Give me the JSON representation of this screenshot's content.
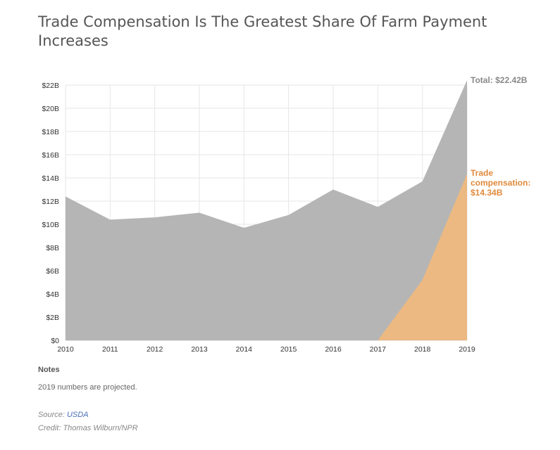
{
  "chart_data": {
    "type": "area",
    "title": "Trade Compensation Is The Greatest Share Of Farm Payment Increases",
    "x": [
      2010,
      2011,
      2012,
      2013,
      2014,
      2015,
      2016,
      2017,
      2018,
      2019
    ],
    "series": [
      {
        "name": "Total",
        "values": [
          12.4,
          10.4,
          10.6,
          11.0,
          9.7,
          10.8,
          13.0,
          11.5,
          13.7,
          22.42
        ],
        "color": "#b5b5b5"
      },
      {
        "name": "Trade compensation",
        "values": [
          0,
          0,
          0,
          0,
          0,
          0,
          0,
          0,
          5.2,
          14.34
        ],
        "color": "#eeb97e"
      }
    ],
    "y_ticks": [
      "$0",
      "$2B",
      "$4B",
      "$6B",
      "$8B",
      "$10B",
      "$12B",
      "$14B",
      "$16B",
      "$18B",
      "$20B",
      "$22B"
    ],
    "ylim": [
      0,
      22.5
    ],
    "grid": true,
    "annotations": {
      "total": "Total: $22.42B",
      "trade": [
        "Trade",
        "compensation:",
        "$14.34B"
      ]
    }
  },
  "notes": {
    "heading": "Notes",
    "text": "2019 numbers are projected."
  },
  "footer": {
    "source_label": "Source: ",
    "source_link": "USDA",
    "credit": "Credit: Thomas Wilburn/NPR"
  }
}
